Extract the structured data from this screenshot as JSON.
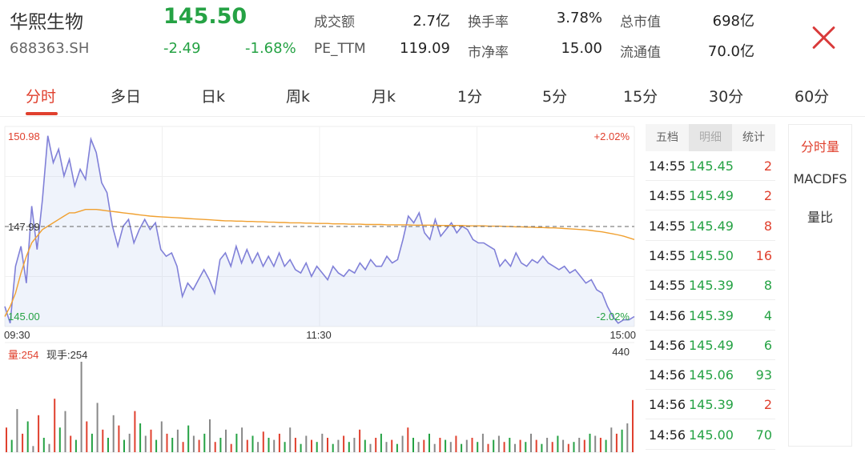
{
  "header": {
    "name": "华熙生物",
    "code": "688363.SH",
    "price": "145.50",
    "change": "-2.49",
    "change_pct": "-1.68%",
    "stats": [
      {
        "label": "成交额",
        "value": "2.7亿"
      },
      {
        "label": "换手率",
        "value": "3.78%"
      },
      {
        "label": "总市值",
        "value": "698亿"
      },
      {
        "label": "PE_TTM",
        "value": "119.09"
      },
      {
        "label": "市净率",
        "value": "15.00"
      },
      {
        "label": "流通值",
        "value": "70.0亿"
      }
    ],
    "close_icon": "close-icon"
  },
  "tabs": [
    "分时",
    "多日",
    "日k",
    "周k",
    "月k",
    "1分",
    "5分",
    "15分",
    "30分",
    "60分"
  ],
  "active_tab": "分时",
  "chart": {
    "price_high_label": "150.98",
    "price_mid_label": "147.99",
    "price_low_label": "145.00",
    "pct_high_label": "+2.02%",
    "pct_low_label": "-2.02%",
    "time_labels": [
      "09:30",
      "11:30",
      "15:00"
    ],
    "volume_label": "量:254",
    "current_hand_label": "现手:254",
    "volume_max_label": "440"
  },
  "chart_data": [
    {
      "type": "line",
      "xlabel": "",
      "ylabel": "",
      "x_ticks": [
        "09:30",
        "11:30",
        "15:00"
      ],
      "ylim": [
        145.0,
        150.98
      ],
      "y_ticks": [
        "145.00",
        "147.99",
        "150.98"
      ],
      "y2_ticks": [
        "-2.02%",
        "+2.02%"
      ],
      "reference_line": 147.99,
      "series": [
        {
          "values": [
            145.6,
            145.1,
            146.8,
            147.4,
            146.3,
            148.6,
            147.3,
            148.8,
            150.7,
            149.9,
            150.3,
            149.5,
            150.0,
            149.2,
            149.7,
            149.4,
            150.6,
            150.2,
            149.3,
            149.0,
            148.0,
            147.4,
            148.0,
            148.2,
            147.5,
            147.9,
            148.2,
            147.9,
            148.1,
            147.3,
            147.1,
            147.2,
            146.8,
            145.9,
            146.3,
            146.1,
            146.4,
            146.7,
            146.4,
            146.0,
            147.0,
            147.2,
            146.8,
            147.4,
            146.9,
            147.3,
            146.9,
            147.2,
            146.8,
            147.1,
            146.8,
            147.2,
            146.8,
            147.0,
            146.7,
            146.6,
            146.9,
            146.5,
            146.8,
            146.6,
            146.4,
            146.8,
            146.6,
            146.5,
            146.7,
            146.6,
            146.9,
            146.7,
            147.0,
            146.8,
            146.8,
            147.1,
            146.9,
            147.0,
            147.6,
            148.3,
            148.1,
            148.4,
            147.8,
            147.6,
            148.2,
            147.7,
            147.9,
            148.1,
            147.8,
            148.0,
            147.9,
            147.6,
            147.5,
            147.5,
            147.4,
            147.3,
            146.8,
            147.0,
            146.8,
            147.2,
            146.9,
            146.8,
            147.0,
            146.9,
            147.1,
            146.9,
            146.8,
            146.7,
            146.8,
            146.6,
            146.7,
            146.5,
            146.3,
            146.4,
            146.1,
            146.0,
            145.6,
            145.3,
            145.1,
            145.2,
            145.2,
            145.3
          ]
        },
        {
          "values": [
            145.3,
            145.6,
            146.0,
            146.6,
            147.1,
            147.5,
            147.7,
            147.9,
            148.0,
            148.1,
            148.2,
            148.3,
            148.4,
            148.4,
            148.45,
            148.5,
            148.5,
            148.5,
            148.48,
            148.46,
            148.44,
            148.42,
            148.4,
            148.38,
            148.36,
            148.34,
            148.32,
            148.3,
            148.29,
            148.28,
            148.27,
            148.26,
            148.25,
            148.24,
            148.23,
            148.22,
            148.21,
            148.2,
            148.19,
            148.18,
            148.17,
            148.16,
            148.16,
            148.15,
            148.15,
            148.14,
            148.14,
            148.13,
            148.13,
            148.12,
            148.12,
            148.11,
            148.11,
            148.1,
            148.1,
            148.1,
            148.09,
            148.09,
            148.08,
            148.08,
            148.08,
            148.07,
            148.07,
            148.07,
            148.06,
            148.06,
            148.06,
            148.05,
            148.05,
            148.05,
            148.05,
            148.04,
            148.04,
            148.04,
            148.04,
            148.04,
            148.03,
            148.03,
            148.03,
            148.03,
            148.03,
            148.02,
            148.02,
            148.02,
            148.02,
            148.02,
            148.01,
            148.01,
            148.01,
            148.01,
            148.0,
            148.0,
            148.0,
            147.99,
            147.99,
            147.98,
            147.98,
            147.97,
            147.97,
            147.96,
            147.96,
            147.95,
            147.95,
            147.94,
            147.93,
            147.92,
            147.91,
            147.9,
            147.89,
            147.87,
            147.85,
            147.83,
            147.8,
            147.77,
            147.74,
            147.7,
            147.65,
            147.6
          ]
        }
      ]
    },
    {
      "type": "bar",
      "ylim": [
        0,
        440
      ],
      "y_ticks": [
        "440"
      ],
      "values": [
        120,
        60,
        210,
        90,
        150,
        30,
        180,
        70,
        40,
        260,
        120,
        200,
        80,
        60,
        440,
        150,
        90,
        240,
        110,
        70,
        180,
        130,
        60,
        90,
        200,
        140,
        80,
        110,
        60,
        150,
        90,
        70,
        110,
        50,
        130,
        80,
        60,
        90,
        160,
        50,
        70,
        110,
        40,
        90,
        120,
        60,
        80,
        50,
        100,
        70,
        60,
        90,
        50,
        120,
        70,
        40,
        80,
        60,
        50,
        90,
        70,
        40,
        60,
        80,
        50,
        70,
        110,
        60,
        40,
        70,
        90,
        50,
        60,
        40,
        80,
        120,
        70,
        50,
        60,
        90,
        40,
        70,
        60,
        50,
        80,
        40,
        60,
        70,
        50,
        90,
        40,
        60,
        80,
        50,
        70,
        40,
        60,
        50,
        90,
        60,
        40,
        70,
        50,
        80,
        60,
        40,
        50,
        70,
        60,
        90,
        80,
        70,
        60,
        120,
        90,
        110,
        140,
        254
      ],
      "colors_cycle": [
        "#e0402e",
        "#25a244",
        "#888888"
      ]
    }
  ],
  "trades": {
    "tabs": [
      "五档",
      "明细",
      "统计"
    ],
    "active_tab": "明细",
    "rows": [
      {
        "time": "14:55",
        "price": "145.45",
        "vol": "2",
        "dir": "red"
      },
      {
        "time": "14:55",
        "price": "145.49",
        "vol": "2",
        "dir": "red"
      },
      {
        "time": "14:55",
        "price": "145.49",
        "vol": "8",
        "dir": "red"
      },
      {
        "time": "14:55",
        "price": "145.50",
        "vol": "16",
        "dir": "red"
      },
      {
        "time": "14:55",
        "price": "145.39",
        "vol": "8",
        "dir": "green"
      },
      {
        "time": "14:56",
        "price": "145.39",
        "vol": "4",
        "dir": "green"
      },
      {
        "time": "14:56",
        "price": "145.49",
        "vol": "6",
        "dir": "green"
      },
      {
        "time": "14:56",
        "price": "145.06",
        "vol": "93",
        "dir": "green"
      },
      {
        "time": "14:56",
        "price": "145.39",
        "vol": "2",
        "dir": "red"
      },
      {
        "time": "14:56",
        "price": "145.00",
        "vol": "70",
        "dir": "green"
      }
    ]
  },
  "indicators": {
    "items": [
      "分时量",
      "MACDFS",
      "量比"
    ],
    "active": "分时量"
  },
  "colors": {
    "up": "#e0402e",
    "down": "#25a244",
    "price_line": "#8080d8",
    "avg_line": "#f0a030",
    "accent": "#e0402e"
  }
}
